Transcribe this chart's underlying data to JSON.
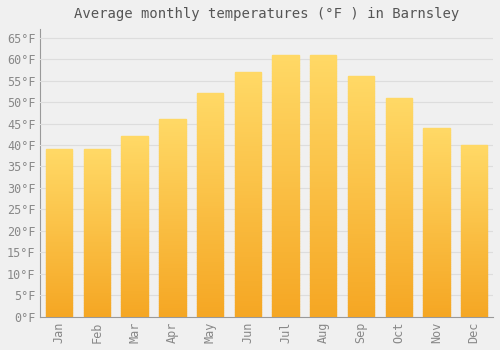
{
  "title": "Average monthly temperatures (°F ) in Barnsley",
  "months": [
    "Jan",
    "Feb",
    "Mar",
    "Apr",
    "May",
    "Jun",
    "Jul",
    "Aug",
    "Sep",
    "Oct",
    "Nov",
    "Dec"
  ],
  "values": [
    39,
    39,
    42,
    46,
    52,
    57,
    61,
    61,
    56,
    51,
    44,
    40
  ],
  "bar_color_top": "#FFD966",
  "bar_color_bottom": "#F5A623",
  "background_color": "#F0F0F0",
  "grid_color": "#DDDDDD",
  "text_color": "#888888",
  "title_color": "#555555",
  "ylim": [
    0,
    67
  ],
  "yticks": [
    0,
    5,
    10,
    15,
    20,
    25,
    30,
    35,
    40,
    45,
    50,
    55,
    60,
    65
  ],
  "title_fontsize": 10,
  "tick_fontsize": 8.5,
  "font_family": "monospace",
  "bar_width": 0.7
}
